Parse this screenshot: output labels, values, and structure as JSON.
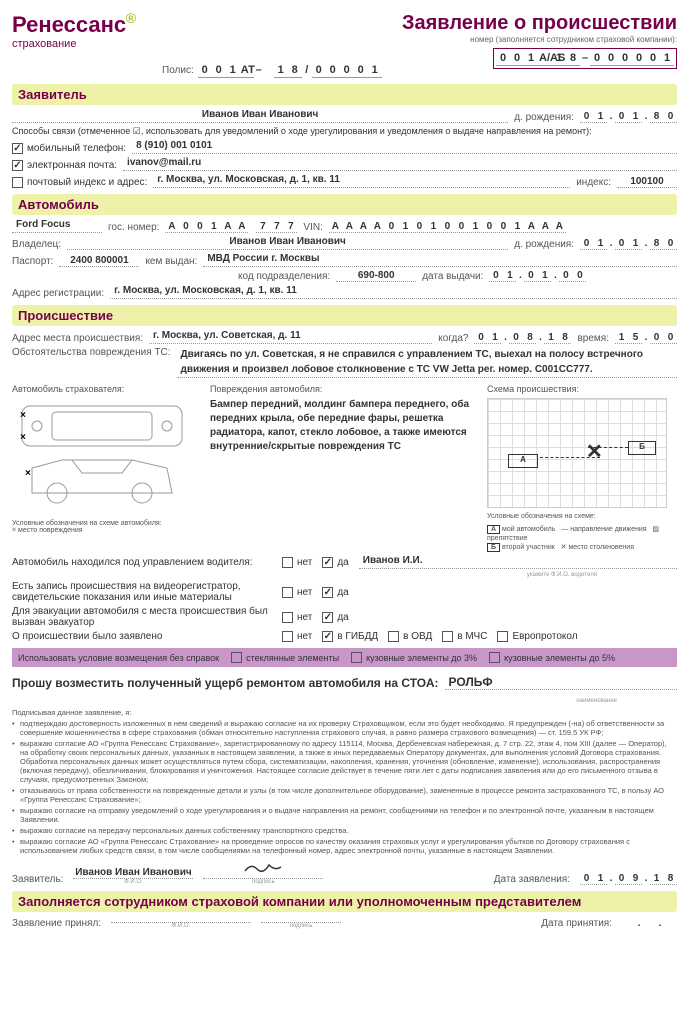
{
  "logo": {
    "name": "Ренессанс",
    "sub": "страхование"
  },
  "title": "Заявление о происшествии",
  "numberLabel": "номер (заполняется сотрудником страховой компании):",
  "claimNumber": [
    "0",
    "0",
    "1",
    "А/AS",
    "1",
    "8",
    "–",
    "0",
    "0",
    "0",
    "0",
    "0",
    "1"
  ],
  "polisLabel": "Полис:",
  "polis": [
    "0",
    "0",
    "1",
    "АТ",
    "–",
    "",
    "1",
    "8",
    "/",
    "0",
    "0",
    "0",
    "0",
    "1"
  ],
  "sections": {
    "applicant": "Заявитель",
    "auto": "Автомобиль",
    "incident": "Происшествие",
    "staff": "Заполняется сотрудником страховой компании или уполномоченным представителем"
  },
  "applicant": {
    "name": "Иванов Иван Иванович",
    "dobLabel": "д. рождения:",
    "dob": [
      "0",
      "1",
      ".",
      "0",
      "1",
      ".",
      "8",
      "0"
    ],
    "contactNote": "Способы связи (отмеченное ☑, использовать для уведомлений о ходе урегулирования и уведомления о выдаче направления на ремонт):",
    "mobileLabel": "мобильный телефон:",
    "mobilePrefix": "8 (",
    "mobileCode": "910",
    "mobileMid": ") ",
    "mobileNum": "001 0101",
    "emailLabel": "электронная почта:",
    "email": "ivanov@mail.ru",
    "postalLabel": "почтовый индекс и адрес:",
    "address": "г. Москва, ул. Московская, д. 1, кв. 11",
    "indexLabel": "индекс:",
    "index": "100100"
  },
  "auto": {
    "model": "Ford Focus",
    "gosLabel": "гос. номер:",
    "gos": [
      "А",
      "0",
      "0",
      "1",
      "А",
      "А",
      "",
      "7",
      "7",
      "7"
    ],
    "vinLabel": "VIN:",
    "vin": [
      "А",
      "А",
      "А",
      "А",
      "0",
      "1",
      "0",
      "1",
      "0",
      "0",
      "1",
      "0",
      "0",
      "1",
      "А",
      "А",
      "А"
    ],
    "ownerLabel": "Владелец:",
    "owner": "Иванов Иван Иванович",
    "ownerDobLabel": "д. рождения:",
    "ownerDob": [
      "0",
      "1",
      ".",
      "0",
      "1",
      ".",
      "8",
      "0"
    ],
    "passportLabel": "Паспорт:",
    "passport": "2400 800001",
    "issuedByLabel": "кем выдан:",
    "issuedBy": "МВД России г. Москвы",
    "unitCodeLabel": "код подразделения:",
    "unitCode": "690-800",
    "issueDateLabel": "дата выдачи:",
    "issueDate": [
      "0",
      "1",
      ".",
      "0",
      "1",
      ".",
      "0",
      "0"
    ],
    "regAddrLabel": "Адрес регистрации:",
    "regAddr": "г. Москва, ул. Московская, д. 1, кв. 11"
  },
  "incident": {
    "placeLabel": "Адрес места происшествия:",
    "place": "г. Москва, ул. Советская, д. 11",
    "whenLabel": "когда?",
    "date": [
      "0",
      "1",
      ".",
      "0",
      "8",
      ".",
      "1",
      "8"
    ],
    "timeLabel": "время:",
    "time": [
      "1",
      "5",
      ".",
      "0",
      "0"
    ],
    "circLabel": "Обстоятельства повреждения ТС:",
    "circ": "Двигаясь по ул. Советская, я не справился с управлением ТС, выехал на полосу встречного движения и произвел лобовое столкновение с ТС VW Jetta рег. номер. С001СС777.",
    "insurerCarLabel": "Автомобиль страхователя:",
    "damagesLabel": "Повреждения автомобиля:",
    "damages": "Бампер передний, молдинг бампера переднего, оба передних крыла, обе передние фары, решетка радиатора, капот, стекло лобовое, а также имеются внутренние/скрытые повреждения ТС",
    "schemeLabel": "Схема происшествия:",
    "legendCar": "Условные обозначения на схеме автомобиля:",
    "legendCarNote": "× место повреждения",
    "legendScheme": "Условные обозначения на схеме:",
    "legendItems": {
      "a": "мой автомобиль",
      "b": "второй участник",
      "dir": "направление движения",
      "obs": "препятствие",
      "x": "место столкновения"
    },
    "qa": {
      "driver": "Автомобиль находился под управлением водителя:",
      "driverName": "Иванов И.И.",
      "driverNote": "укажите Ф.И.О. водителя",
      "video": "Есть запись происшествия на видеорегистратор, свидетельские показания или иные материалы",
      "tow": "Для эвакуации автомобиля с места происшествия был вызван эвакуатор",
      "reported": "О происшествии было заявлено",
      "no": "нет",
      "yes": "да",
      "gibdd": "в ГИБДД",
      "ovd": "в ОВД",
      "mchs": "в МЧС",
      "euro": "Европротокол"
    },
    "purpleLabel": "Использовать условие возмещения без справок",
    "purpleOpts": {
      "glass": "стеклянные элементы",
      "body3": "кузовные элементы до 3%",
      "body5": "кузовные элементы до 5%"
    }
  },
  "request": {
    "text": "Прошу возместить полученный ущерб ремонтом автомобиля на СТОА:",
    "stoa": "РОЛЬФ",
    "note": "наименование"
  },
  "finePrint": {
    "header": "Подписывая данное заявление, я:",
    "items": [
      "подтверждаю достоверность изложенных в нем сведений и выражаю согласие на их проверку Страховщиком, если это будет необходимо. Я предупрежден (-на) об ответственности за совершение мошенничества в сфере страхования (обман относительно наступления страхового случая, а равно размера страхового возмещения) — ст. 159.5 УК РФ;",
      "выражаю согласие АО «Группа Ренессанс Страхование», зарегистрированному по адресу 115114, Москва, Дербеневская набережная, д. 7 стр. 22, этаж 4, пом XIII (далее — Оператор), на обработку своих персональных данных, указанных в настоящем заявлении, а также в иных передаваемых Оператору документах, для выполнения условий Договора страхования. Обработка персональных данных может осуществляться путем сбора, систематизации, накопления, хранения, уточнения (обновление, изменение), использования, распространения (включая передачу), обезличивания, блокирования и уничтожения. Настоящее согласие действует в течение пяти лет с даты подписания заявления или до его письменного отзыва в случаях, предусмотренных Законом;",
      "отказываюсь от права собственности на поврежденные детали и узлы (в том числе дополнительное оборудование), замененные в процессе ремонта застрахованного ТС, в пользу АО «Группа Ренессанс Страхование»;",
      "выражаю согласие на отправку уведомлений о ходе урегулирования и о выдаче направления на ремонт, сообщениями на телефон и по электронной почте, указанным в настоящем Заявлении.",
      "выражаю согласие на передачу персональных данных собственнику транспортного средства.",
      "выражаю согласие АО «Группа Ренессанс Страхование» на проведение опросов по качеству оказания страховых услуг и урегулирования убытков по Договору страхования с использованием любых средств связи, в том числе сообщениями на телефонный номер, адрес электронной почты, указанные в настоящем Заявлении."
    ]
  },
  "signature": {
    "applicantLabel": "Заявитель:",
    "applicantName": "Иванов Иван Иванович",
    "fioNote": "Ф.И.О.",
    "sigNote": "подпись",
    "dateLabel": "Дата заявления:",
    "date": [
      "0",
      "1",
      ".",
      "0",
      "9",
      ".",
      "1",
      "8"
    ]
  },
  "footer": {
    "receivedLabel": "Заявление принял:",
    "dateLabel": "Дата принятия:"
  }
}
